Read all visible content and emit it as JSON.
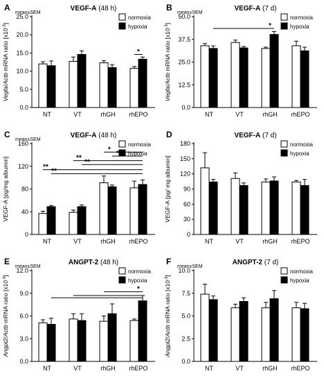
{
  "legend": {
    "normoxia": "normoxia",
    "hypoxia": "hypoxia"
  },
  "colors": {
    "normoxia": "#ffffff",
    "hypoxia": "#000000",
    "stroke": "#000000"
  },
  "chart_data": [
    {
      "id": "A",
      "type": "bar",
      "letter": "A",
      "sem_label": "mean±SEM",
      "title_main": "VEGF-A",
      "title_suffix": " (48 h)",
      "ylabel_italic_1": "Vegfa",
      "ylabel_mid": "/",
      "ylabel_italic_2": "Actb",
      "ylabel_rest": " mRNA ratio [x10",
      "ylabel_sup": "-3",
      "ylabel_end": "]",
      "ylim": [
        0,
        25
      ],
      "yticks": [
        "0.0",
        "5.0",
        "10.0",
        "15.0",
        "20.0",
        "25.0"
      ],
      "categories": [
        "NT",
        "VT",
        "rhGH",
        "rhEPO"
      ],
      "series": [
        {
          "name": "normoxia",
          "values": [
            12.0,
            12.7,
            12.3,
            10.8
          ],
          "sem": [
            0.6,
            1.2,
            0.6,
            0.5
          ]
        },
        {
          "name": "hypoxia",
          "values": [
            11.5,
            14.6,
            11.0,
            13.3
          ],
          "sem": [
            1.3,
            1.0,
            0.8,
            0.6
          ]
        }
      ],
      "annotations": [
        {
          "label": "*",
          "y": 14.6,
          "x1": [
            3,
            0
          ],
          "x2": [
            3,
            1
          ]
        }
      ]
    },
    {
      "id": "B",
      "type": "bar",
      "letter": "B",
      "sem_label": "mean±SEM",
      "title_main": "VEGF-A",
      "title_suffix": " (7 d)",
      "ylabel_italic_1": "Vegfa",
      "ylabel_mid": "/",
      "ylabel_italic_2": "Actb",
      "ylabel_rest": " mRNA ratio [x10",
      "ylabel_sup": "-3",
      "ylabel_end": "]",
      "ylim": [
        0,
        50
      ],
      "yticks": [
        "0.0",
        "12.5",
        "25.0",
        "37.5",
        "50.0"
      ],
      "categories": [
        "NT",
        "VT",
        "rhGH",
        "rhEPO"
      ],
      "series": [
        {
          "name": "normoxia",
          "values": [
            34.0,
            35.8,
            32.5,
            34.0
          ],
          "sem": [
            1.2,
            1.3,
            0.7,
            2.5
          ]
        },
        {
          "name": "hypoxia",
          "values": [
            32.5,
            32.8,
            40.2,
            31.2
          ],
          "sem": [
            1.4,
            0.8,
            1.6,
            2.0
          ]
        }
      ],
      "annotations": [
        {
          "label": "*",
          "y": 43.5,
          "x1": [
            0,
            1
          ],
          "x2": [
            2,
            1
          ]
        }
      ]
    },
    {
      "id": "C",
      "type": "bar",
      "letter": "C",
      "sem_label": "mean±SEM",
      "title_main": "VEGF-A",
      "title_suffix": " (48 h)",
      "ylabel_italic_1": "",
      "ylabel_mid": "",
      "ylabel_italic_2": "",
      "ylabel_rest": "VEGF-A [pg/mg albumin]",
      "ylabel_sup": "",
      "ylabel_end": "",
      "ylim": [
        0,
        160
      ],
      "yticks": [
        "0",
        "40",
        "80",
        "120",
        "160"
      ],
      "categories": [
        "NT",
        "VT",
        "rhGH",
        "rhEPO"
      ],
      "series": [
        {
          "name": "normoxia",
          "values": [
            37,
            39,
            91,
            82
          ],
          "sem": [
            4,
            4,
            12,
            12
          ]
        },
        {
          "name": "hypoxia",
          "values": [
            49,
            49,
            84,
            88
          ],
          "sem": [
            2,
            3,
            3,
            8
          ]
        }
      ],
      "annotations": [
        {
          "label": "*",
          "y": 145,
          "x1": [
            2,
            0
          ],
          "x2": [
            3,
            1
          ]
        },
        {
          "label": "*",
          "y": 138,
          "x1": [
            2,
            1
          ],
          "x2": [
            3,
            1
          ]
        },
        {
          "label": "**",
          "y": 130,
          "x1": [
            1,
            0
          ],
          "x2": [
            3,
            1
          ]
        },
        {
          "label": "**",
          "y": 123,
          "x1": [
            1,
            1
          ],
          "x2": [
            3,
            1
          ]
        },
        {
          "label": "**",
          "y": 114,
          "x1": [
            0,
            0
          ],
          "x2": [
            3,
            1
          ]
        },
        {
          "label": "**",
          "y": 107,
          "x1": [
            0,
            1
          ],
          "x2": [
            3,
            1
          ]
        }
      ]
    },
    {
      "id": "D",
      "type": "bar",
      "letter": "D",
      "sem_label": "",
      "title_main": "VEGF-A",
      "title_suffix": " (7 d)",
      "ylabel_italic_1": "",
      "ylabel_mid": "",
      "ylabel_italic_2": "",
      "ylabel_rest": "VEGF-A [pg/ mg albumin]",
      "ylabel_sup": "",
      "ylabel_end": "",
      "ylim": [
        0,
        180
      ],
      "yticks": [
        "0",
        "30",
        "60",
        "90",
        "120",
        "150",
        "180"
      ],
      "categories": [
        "NT",
        "VT",
        "rhGH",
        "rhEPO"
      ],
      "series": [
        {
          "name": "normoxia",
          "values": [
            132,
            111,
            104,
            104
          ],
          "sem": [
            30,
            11,
            6,
            3
          ]
        },
        {
          "name": "hypoxia",
          "values": [
            104,
            97,
            106,
            97
          ],
          "sem": [
            5,
            5,
            8,
            12
          ]
        }
      ],
      "annotations": []
    },
    {
      "id": "E",
      "type": "bar",
      "letter": "E",
      "sem_label": "mean±SEM",
      "title_main": "ANGPT-2",
      "title_suffix": " (48 h)",
      "ylabel_italic_1": "Angpt2",
      "ylabel_mid": "/",
      "ylabel_italic_2": "Actb",
      "ylabel_rest": " mRNA ratio [x10",
      "ylabel_sup": "-3",
      "ylabel_end": "]",
      "ylim": [
        0,
        12
      ],
      "yticks": [
        "0.0",
        "3.0",
        "6.0",
        "9.0",
        "12.0"
      ],
      "categories": [
        "NT",
        "VT",
        "rhGH",
        "rhEPO"
      ],
      "series": [
        {
          "name": "normoxia",
          "values": [
            5.1,
            5.6,
            5.3,
            5.4
          ],
          "sem": [
            0.4,
            0.7,
            0.7,
            0.2
          ]
        },
        {
          "name": "hypoxia",
          "values": [
            4.9,
            5.4,
            6.3,
            8.0
          ],
          "sem": [
            0.8,
            0.9,
            1.3,
            0.7
          ]
        }
      ],
      "annotations": [
        {
          "label": "*",
          "y": 9.2,
          "x1": [
            2,
            0
          ],
          "x2": [
            3,
            1
          ]
        },
        {
          "label": "",
          "y": 8.7,
          "x1": [
            1,
            0
          ],
          "x2": [
            3,
            1
          ]
        },
        {
          "label": "",
          "y": 8.4,
          "x1": [
            0,
            1
          ],
          "x2": [
            3,
            1
          ]
        }
      ]
    },
    {
      "id": "F",
      "type": "bar",
      "letter": "F",
      "sem_label": "mean±SEM",
      "title_main": "ANGPT-2",
      "title_suffix": " (7 d)",
      "ylabel_italic_1": "Angpt2",
      "ylabel_mid": "/",
      "ylabel_italic_2": "Actb",
      "ylabel_rest": " mRNA ratio [x10",
      "ylabel_sup": "-3",
      "ylabel_end": "]",
      "ylim": [
        0,
        10
      ],
      "yticks": [
        "0.0",
        "2.5",
        "5.0",
        "7.5",
        "10.0"
      ],
      "categories": [
        "NT",
        "VT",
        "rhGH",
        "rhEPO"
      ],
      "series": [
        {
          "name": "normoxia",
          "values": [
            7.4,
            5.9,
            5.9,
            5.9
          ],
          "sem": [
            1.1,
            0.4,
            0.6,
            0.6
          ]
        },
        {
          "name": "hypoxia",
          "values": [
            6.8,
            6.6,
            6.9,
            5.8
          ],
          "sem": [
            0.4,
            0.4,
            0.9,
            0.6
          ]
        }
      ],
      "annotations": []
    }
  ]
}
